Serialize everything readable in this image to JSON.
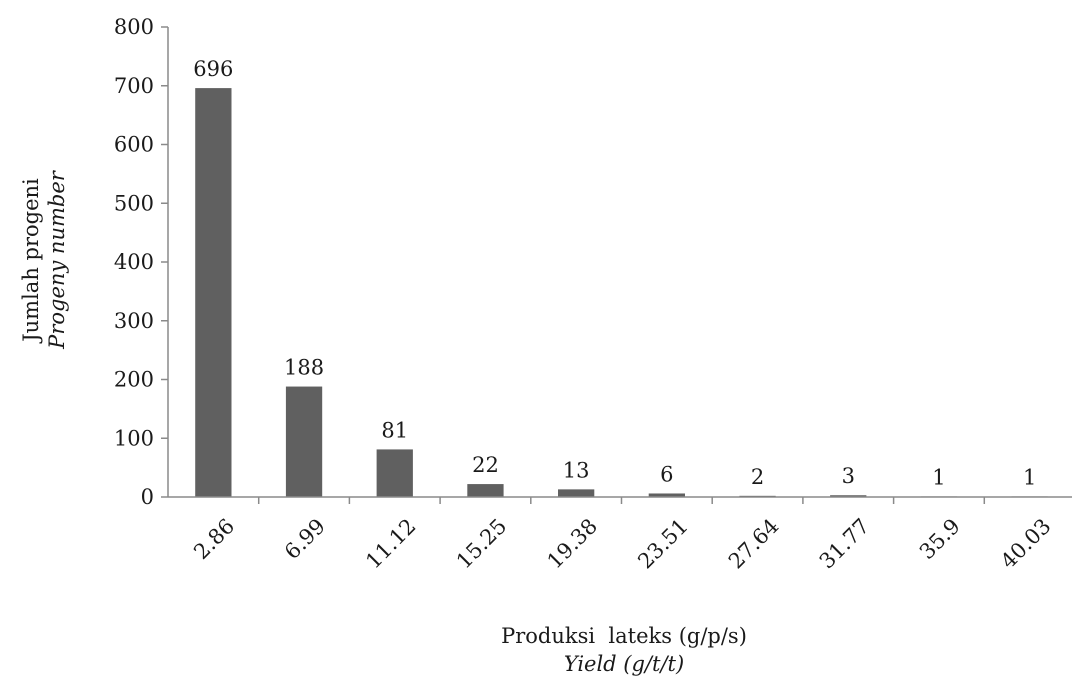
{
  "chart_data": {
    "type": "bar",
    "categories": [
      "2.86",
      "6.99",
      "11.12",
      "15.25",
      "19.38",
      "23.51",
      "27.64",
      "31.77",
      "35.9",
      "40.03"
    ],
    "values": [
      696,
      188,
      81,
      22,
      13,
      6,
      2,
      3,
      1,
      1
    ],
    "data_labels": [
      "696",
      "188",
      "81",
      "22",
      "13",
      "6",
      "2",
      "3",
      "1",
      "1"
    ],
    "title": "",
    "xlabel": "Produksi  lateks (g/p/s)",
    "xlabel_secondary": "Yield (g/t/t)",
    "ylabel": "Jumlah progeni",
    "ylabel_secondary": "Progeny number",
    "ylim": [
      0,
      800
    ],
    "yticks": [
      0,
      100,
      200,
      300,
      400,
      500,
      600,
      700,
      800
    ],
    "ytick_labels": [
      "0",
      "100",
      "200",
      "300",
      "400",
      "500",
      "600",
      "700",
      "800"
    ],
    "bar_color": "#606060",
    "axis_color": "#8a8a8a",
    "grid": false,
    "legend": "none"
  }
}
